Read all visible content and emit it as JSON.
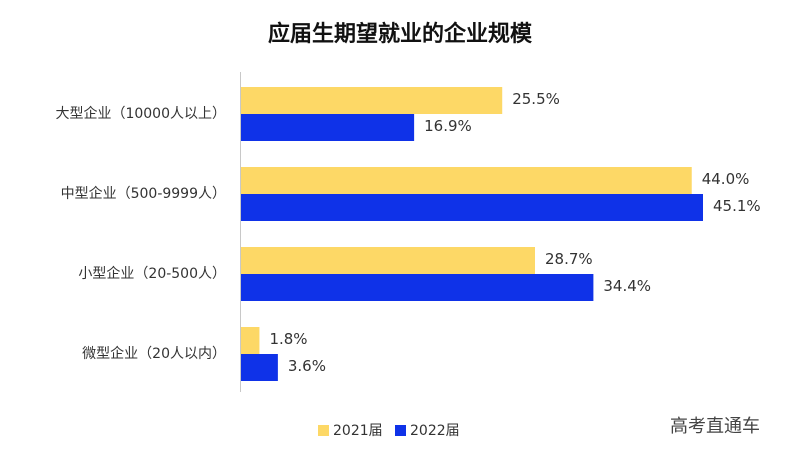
{
  "chart_data": {
    "type": "hbar",
    "title": "应届生期望就业的企业规模",
    "categories": [
      "大型企业（10000人以上）",
      "中型企业（500-9999人）",
      "小型企业（20-500人）",
      "微型企业（20人以内）"
    ],
    "series": [
      {
        "name": "2021届",
        "color": "#fdd866",
        "values": [
          25.5,
          44.0,
          28.7,
          1.8
        ],
        "value_labels": [
          "25.5%",
          "44.0%",
          "28.7%",
          "1.8%"
        ]
      },
      {
        "name": "2022届",
        "color": "#0f32e8",
        "values": [
          16.9,
          45.1,
          34.4,
          3.6
        ],
        "value_labels": [
          "16.9%",
          "45.1%",
          "34.4%",
          "3.6%"
        ]
      }
    ],
    "watermark": "高考直通车"
  }
}
